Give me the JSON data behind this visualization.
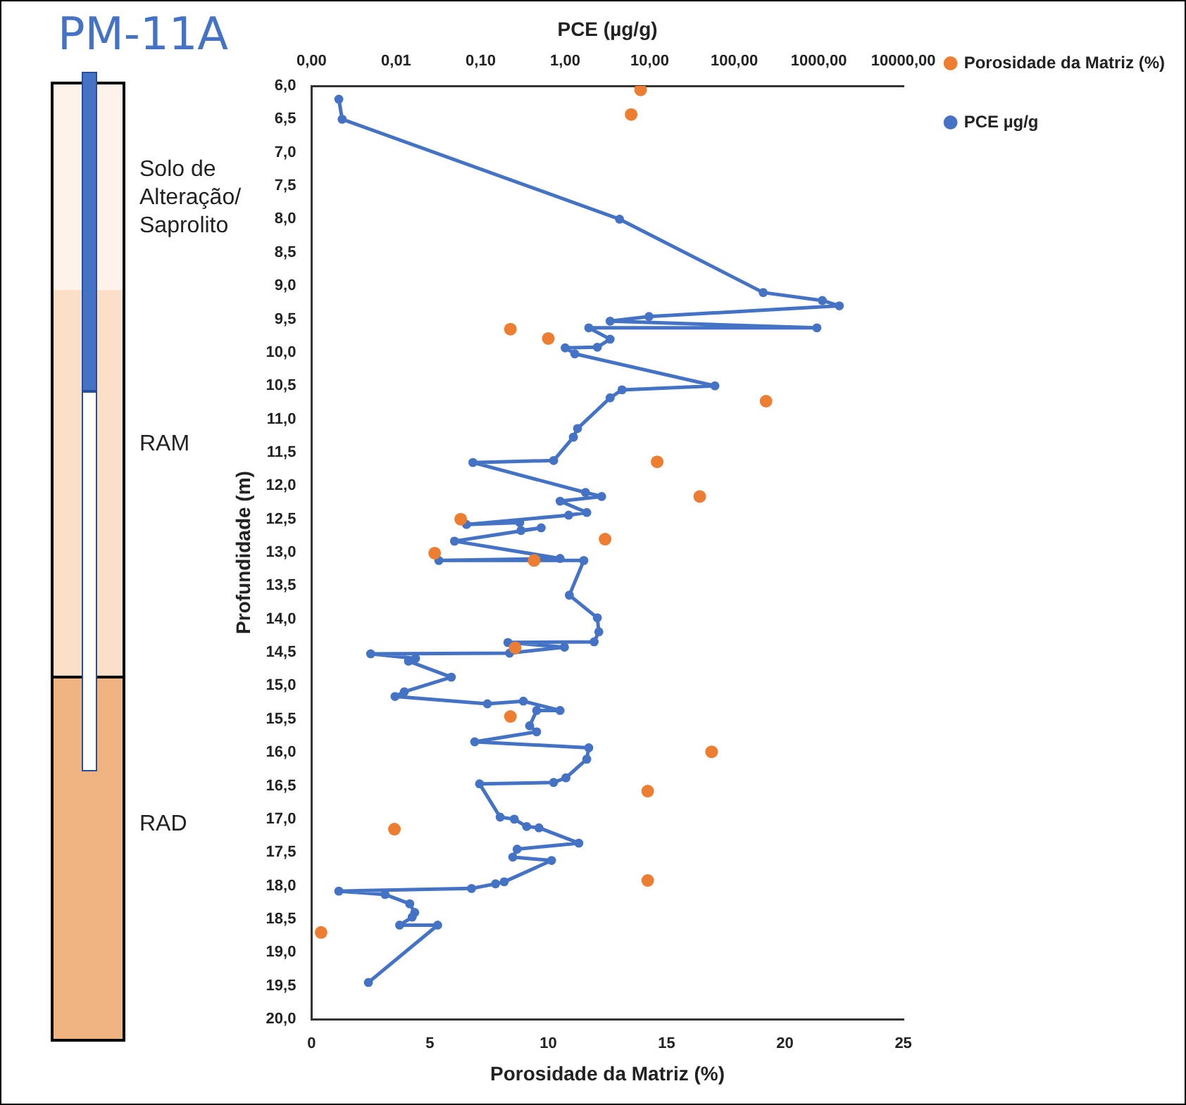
{
  "chart_data": {
    "type": "line",
    "title": "PM-11A",
    "x2label": "PCE (µg/g)",
    "xlabel": "Porosidade da Matriz (%)",
    "ylabel": "Profundidade (m)",
    "annotations": [
      "Solo de Alteração/ Saprolito",
      "RAM",
      "RAD"
    ],
    "log": "x2",
    "x2lim": [
      0.001,
      10000
    ],
    "x2ticks": [
      {
        "value": 0.001,
        "label": "0,00"
      },
      {
        "value": 0.01,
        "label": "0,01"
      },
      {
        "value": 0.1,
        "label": "0,10"
      },
      {
        "value": 1,
        "label": "1,00"
      },
      {
        "value": 10,
        "label": "10,00"
      },
      {
        "value": 100,
        "label": "100,00"
      },
      {
        "value": 1000,
        "label": "1000,00"
      },
      {
        "value": 10000,
        "label": "10000,00"
      }
    ],
    "xlim": [
      0,
      25
    ],
    "xticks": [
      0,
      5,
      10,
      15,
      20,
      25
    ],
    "ylim": [
      20,
      6
    ],
    "yticks": [
      {
        "value": 6,
        "label": "6,0"
      },
      {
        "value": 6.5,
        "label": "6,5"
      },
      {
        "value": 7,
        "label": "7,0"
      },
      {
        "value": 7.5,
        "label": "7,5"
      },
      {
        "value": 8,
        "label": "8,0"
      },
      {
        "value": 8.5,
        "label": "8,5"
      },
      {
        "value": 9,
        "label": "9,0"
      },
      {
        "value": 9.5,
        "label": "9,5"
      },
      {
        "value": 10,
        "label": "10,0"
      },
      {
        "value": 10.5,
        "label": "10,5"
      },
      {
        "value": 11,
        "label": "11,0"
      },
      {
        "value": 11.5,
        "label": "11,5"
      },
      {
        "value": 12,
        "label": "12,0"
      },
      {
        "value": 12.5,
        "label": "12,5"
      },
      {
        "value": 13,
        "label": "13,0"
      },
      {
        "value": 13.5,
        "label": "13,5"
      },
      {
        "value": 14,
        "label": "14,0"
      },
      {
        "value": 14.5,
        "label": "14,5"
      },
      {
        "value": 15,
        "label": "15,0"
      },
      {
        "value": 15.5,
        "label": "15,5"
      },
      {
        "value": 16,
        "label": "16,0"
      },
      {
        "value": 16.5,
        "label": "16,5"
      },
      {
        "value": 17,
        "label": "17,0"
      },
      {
        "value": 17.5,
        "label": "17,5"
      },
      {
        "value": 18,
        "label": "18,0"
      },
      {
        "value": 18.5,
        "label": "18,5"
      },
      {
        "value": 19,
        "label": "19,0"
      },
      {
        "value": 19.5,
        "label": "19,5"
      },
      {
        "value": 20,
        "label": "20,0"
      }
    ],
    "grid": false,
    "legend": "top right",
    "marker": "circle",
    "series": [
      {
        "name": "PCE µg/g",
        "type": "line",
        "axis": "x2",
        "color": "#4472c4",
        "x": [
          0.0021,
          0.0023,
          4.4,
          220,
          1100,
          1750,
          9.8,
          3.4,
          950,
          1.9,
          3.4,
          2.4,
          1.0,
          1.3,
          59,
          4.7,
          3.4,
          1.4,
          1.25,
          0.73,
          0.081,
          1.74,
          2.7,
          0.87,
          1.8,
          1.1,
          0.068,
          0.29,
          0.3,
          0.52,
          0.049,
          0.87,
          0.032,
          1.66,
          1.12,
          2.4,
          2.5,
          2.2,
          0.21,
          0.98,
          0.22,
          0.005,
          0.017,
          0.014,
          0.045,
          0.0125,
          0.0097,
          0.12,
          0.32,
          0.87,
          0.46,
          0.38,
          0.46,
          0.085,
          1.9,
          1.8,
          1.02,
          0.73,
          0.097,
          0.17,
          0.25,
          0.35,
          0.49,
          1.45,
          0.27,
          0.24,
          0.69,
          0.19,
          0.15,
          0.078,
          0.0021,
          0.0074,
          0.0145,
          0.0166,
          0.0155,
          0.011,
          0.031,
          0.0047
        ],
        "values": [
          6.2,
          6.5,
          8.0,
          9.1,
          9.22,
          9.3,
          9.46,
          9.53,
          9.63,
          9.63,
          9.8,
          9.92,
          9.93,
          10.02,
          10.5,
          10.56,
          10.68,
          11.14,
          11.27,
          11.62,
          11.65,
          12.1,
          12.16,
          12.23,
          12.4,
          12.44,
          12.58,
          12.55,
          12.67,
          12.63,
          12.83,
          13.09,
          13.12,
          13.12,
          13.64,
          13.98,
          14.19,
          14.34,
          14.35,
          14.42,
          14.51,
          14.52,
          14.59,
          14.63,
          14.87,
          15.09,
          15.16,
          15.27,
          15.23,
          15.37,
          15.37,
          15.6,
          15.69,
          15.84,
          15.93,
          16.1,
          16.38,
          16.45,
          16.47,
          16.97,
          17.0,
          17.11,
          17.13,
          17.36,
          17.45,
          17.57,
          17.62,
          17.94,
          17.97,
          18.04,
          18.08,
          18.13,
          18.27,
          18.4,
          18.47,
          18.59,
          18.59,
          19.45
        ]
      },
      {
        "name": "Porosidade da Matriz (%)",
        "type": "scatter",
        "color": "#ed7d31",
        "x": [
          13.9,
          13.5,
          8.4,
          10.0,
          19.2,
          14.6,
          16.4,
          6.3,
          12.4,
          5.2,
          9.4,
          8.6,
          8.4,
          16.9,
          14.2,
          3.5,
          14.2,
          0.4
        ],
        "values": [
          6.06,
          6.43,
          9.65,
          9.79,
          10.73,
          11.64,
          12.16,
          12.5,
          12.8,
          13.01,
          13.12,
          14.43,
          15.46,
          15.99,
          16.58,
          17.15,
          17.92,
          18.7
        ]
      }
    ]
  }
}
